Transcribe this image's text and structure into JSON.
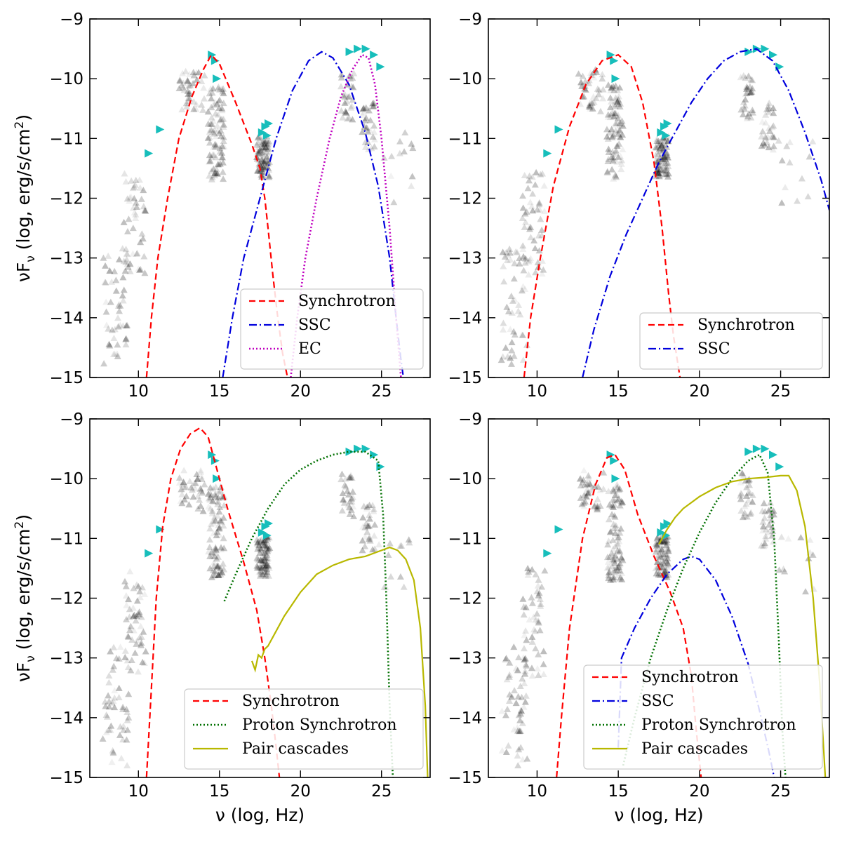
{
  "figure": {
    "xlabel": "ν (log, Hz)",
    "ylabel": "νF",
    "ylabel_sub": "ν",
    "ylabel_units": " (log, erg/s/cm",
    "ylabel_sup": "2",
    "ylabel_close": ")"
  },
  "chart_data": [
    {
      "type": "line",
      "position": "top-left",
      "xlim": [
        7,
        28
      ],
      "ylim": [
        -15,
        -9
      ],
      "xticks": [
        10,
        15,
        20,
        25
      ],
      "yticks": [
        -9,
        -10,
        -11,
        -12,
        -13,
        -14,
        -15
      ],
      "legend_position": "lower-right",
      "series": [
        {
          "name": "Synchrotron",
          "color": "#ff0000",
          "style": "dashed",
          "x": [
            10.5,
            10.8,
            11.2,
            11.8,
            12.5,
            13.3,
            14.0,
            14.5,
            15.0,
            16.0,
            17.0,
            17.5,
            17.8,
            18.0,
            18.3,
            18.6,
            18.9,
            19.2
          ],
          "y": [
            -15,
            -14.0,
            -13.0,
            -12.0,
            -11.0,
            -10.3,
            -9.85,
            -9.6,
            -9.75,
            -10.4,
            -11.1,
            -11.5,
            -12.0,
            -12.5,
            -13.3,
            -14.0,
            -14.6,
            -15
          ]
        },
        {
          "name": "SSC",
          "color": "#0000dd",
          "style": "dashdot",
          "x": [
            15.2,
            15.8,
            16.5,
            17.5,
            18.5,
            19.5,
            20.5,
            21.3,
            22.0,
            23.0,
            24.0,
            24.8,
            25.5,
            25.9,
            26.2,
            26.35
          ],
          "y": [
            -15,
            -14.0,
            -13.0,
            -12.0,
            -11.0,
            -10.2,
            -9.7,
            -9.55,
            -9.65,
            -10.1,
            -10.9,
            -11.8,
            -13.0,
            -14.0,
            -14.7,
            -15
          ]
        },
        {
          "name": "EC",
          "color": "#c000c0",
          "style": "dotted",
          "x": [
            19.4,
            19.8,
            20.3,
            21.0,
            21.8,
            22.5,
            23.2,
            23.8,
            24.2,
            24.6,
            25.0,
            25.5,
            25.9,
            26.2
          ],
          "y": [
            -15,
            -14.0,
            -13.0,
            -12.0,
            -11.0,
            -10.3,
            -9.85,
            -9.6,
            -9.65,
            -10.1,
            -11.0,
            -12.5,
            -14.0,
            -15
          ]
        }
      ]
    },
    {
      "type": "line",
      "position": "top-right",
      "xlim": [
        7,
        28
      ],
      "ylim": [
        -15,
        -9
      ],
      "xticks": [
        10,
        15,
        20,
        25
      ],
      "yticks": [
        -9,
        -10,
        -11,
        -12,
        -13,
        -14,
        -15
      ],
      "legend_position": "lower-right",
      "series": [
        {
          "name": "Synchrotron",
          "color": "#ff0000",
          "style": "dashed",
          "x": [
            9.2,
            9.6,
            10.2,
            11.0,
            12.0,
            13.0,
            14.0,
            15.0,
            15.8,
            16.5,
            17.2,
            17.7,
            18.1,
            18.4,
            18.8
          ],
          "y": [
            -15,
            -14.0,
            -13.0,
            -11.8,
            -10.8,
            -10.1,
            -9.7,
            -9.6,
            -9.8,
            -10.4,
            -11.4,
            -12.5,
            -13.6,
            -14.3,
            -15
          ]
        },
        {
          "name": "SSC",
          "color": "#0000dd",
          "style": "dashdot",
          "x": [
            12.8,
            13.5,
            14.5,
            15.5,
            16.5,
            17.5,
            18.5,
            19.5,
            20.5,
            21.5,
            22.5,
            23.5,
            24.5,
            25.5,
            26.5,
            27.5,
            28.0
          ],
          "y": [
            -15,
            -14.2,
            -13.3,
            -12.6,
            -12.0,
            -11.4,
            -10.9,
            -10.4,
            -10.0,
            -9.7,
            -9.55,
            -9.5,
            -9.7,
            -10.2,
            -10.9,
            -11.7,
            -12.2
          ]
        }
      ]
    },
    {
      "type": "line",
      "position": "bottom-left",
      "xlim": [
        7,
        28
      ],
      "ylim": [
        -15,
        -9
      ],
      "xticks": [
        10,
        15,
        20,
        25
      ],
      "yticks": [
        -9,
        -10,
        -11,
        -12,
        -13,
        -14,
        -15
      ],
      "legend_position": "lower-right",
      "series": [
        {
          "name": "Synchrotron",
          "color": "#ff0000",
          "style": "dashed",
          "x": [
            10.5,
            10.8,
            11.1,
            11.5,
            12.0,
            12.6,
            13.2,
            13.8,
            14.3,
            14.8,
            15.5,
            16.5,
            17.3,
            17.8,
            18.2,
            18.5,
            18.7
          ],
          "y": [
            -15,
            -13.5,
            -12.0,
            -10.8,
            -10.0,
            -9.5,
            -9.25,
            -9.15,
            -9.3,
            -9.8,
            -10.5,
            -11.4,
            -12.2,
            -13.0,
            -13.8,
            -14.5,
            -15
          ]
        },
        {
          "name": "Proton Synchrotron",
          "color": "#007000",
          "style": "dotted",
          "x": [
            15.3,
            16.0,
            17.0,
            18.0,
            19.0,
            20.0,
            21.0,
            22.0,
            23.0,
            24.0,
            24.8,
            25.1,
            25.3,
            25.5,
            25.7
          ],
          "y": [
            -12.05,
            -11.6,
            -11.0,
            -10.5,
            -10.1,
            -9.85,
            -9.7,
            -9.6,
            -9.55,
            -9.55,
            -9.7,
            -10.6,
            -12.0,
            -13.8,
            -15
          ]
        },
        {
          "name": "Pair cascades",
          "color": "#b8b800",
          "style": "solid",
          "x": [
            17.0,
            17.2,
            17.4,
            17.6,
            17.8,
            18.0,
            18.5,
            19.0,
            19.5,
            20.0,
            21.0,
            22.0,
            23.0,
            24.0,
            25.0,
            25.5,
            26.0,
            26.5,
            27.0,
            27.4,
            27.7,
            27.85
          ],
          "y": [
            -13.05,
            -13.2,
            -12.95,
            -13.0,
            -12.85,
            -12.8,
            -12.55,
            -12.3,
            -12.1,
            -11.9,
            -11.6,
            -11.45,
            -11.35,
            -11.3,
            -11.2,
            -11.15,
            -11.2,
            -11.35,
            -11.7,
            -12.5,
            -13.8,
            -15
          ]
        }
      ]
    },
    {
      "type": "line",
      "position": "bottom-right",
      "xlim": [
        7,
        28
      ],
      "ylim": [
        -15,
        -9
      ],
      "xticks": [
        10,
        15,
        20,
        25
      ],
      "yticks": [
        -9,
        -10,
        -11,
        -12,
        -13,
        -14,
        -15
      ],
      "legend_position": "lower-right",
      "series": [
        {
          "name": "Synchrotron",
          "color": "#ff0000",
          "style": "dashed",
          "x": [
            11.2,
            11.5,
            12.0,
            12.8,
            13.6,
            14.3,
            14.8,
            15.4,
            16.2,
            17.2,
            18.2,
            19.0,
            19.5,
            19.8,
            20.1
          ],
          "y": [
            -15,
            -14.0,
            -12.5,
            -11.0,
            -10.1,
            -9.65,
            -9.6,
            -9.85,
            -10.6,
            -11.3,
            -11.9,
            -12.5,
            -13.3,
            -14.2,
            -15
          ]
        },
        {
          "name": "SSC",
          "color": "#0000dd",
          "style": "dashdot",
          "x": [
            15.0,
            15.2,
            16.0,
            17.0,
            18.0,
            19.0,
            19.5,
            20.0,
            21.0,
            22.0,
            23.0,
            23.8,
            24.3,
            24.6
          ],
          "y": [
            -14.5,
            -13.0,
            -12.5,
            -12.0,
            -11.6,
            -11.35,
            -11.3,
            -11.35,
            -11.7,
            -12.3,
            -13.1,
            -14.0,
            -14.6,
            -15
          ]
        },
        {
          "name": "Proton Synchrotron",
          "color": "#007000",
          "style": "dotted",
          "x": [
            15.3,
            16.0,
            17.0,
            18.0,
            19.0,
            20.0,
            21.0,
            22.0,
            23.0,
            23.7,
            24.2,
            24.6,
            24.9,
            25.1,
            25.3
          ],
          "y": [
            -14.8,
            -14.0,
            -13.0,
            -12.2,
            -11.5,
            -10.9,
            -10.4,
            -10.0,
            -9.7,
            -9.6,
            -9.9,
            -11.0,
            -12.8,
            -14.2,
            -15
          ]
        },
        {
          "name": "Pair cascades",
          "color": "#b8b800",
          "style": "solid",
          "x": [
            17.5,
            18.0,
            18.5,
            19.0,
            20.0,
            21.0,
            22.0,
            23.0,
            24.0,
            25.0,
            25.5,
            26.0,
            26.5,
            27.0,
            27.4,
            27.6,
            27.75
          ],
          "y": [
            -11.1,
            -10.85,
            -10.65,
            -10.5,
            -10.3,
            -10.15,
            -10.05,
            -10.0,
            -9.98,
            -9.95,
            -9.95,
            -10.2,
            -10.8,
            -12.0,
            -13.4,
            -14.3,
            -15
          ]
        }
      ]
    }
  ]
}
